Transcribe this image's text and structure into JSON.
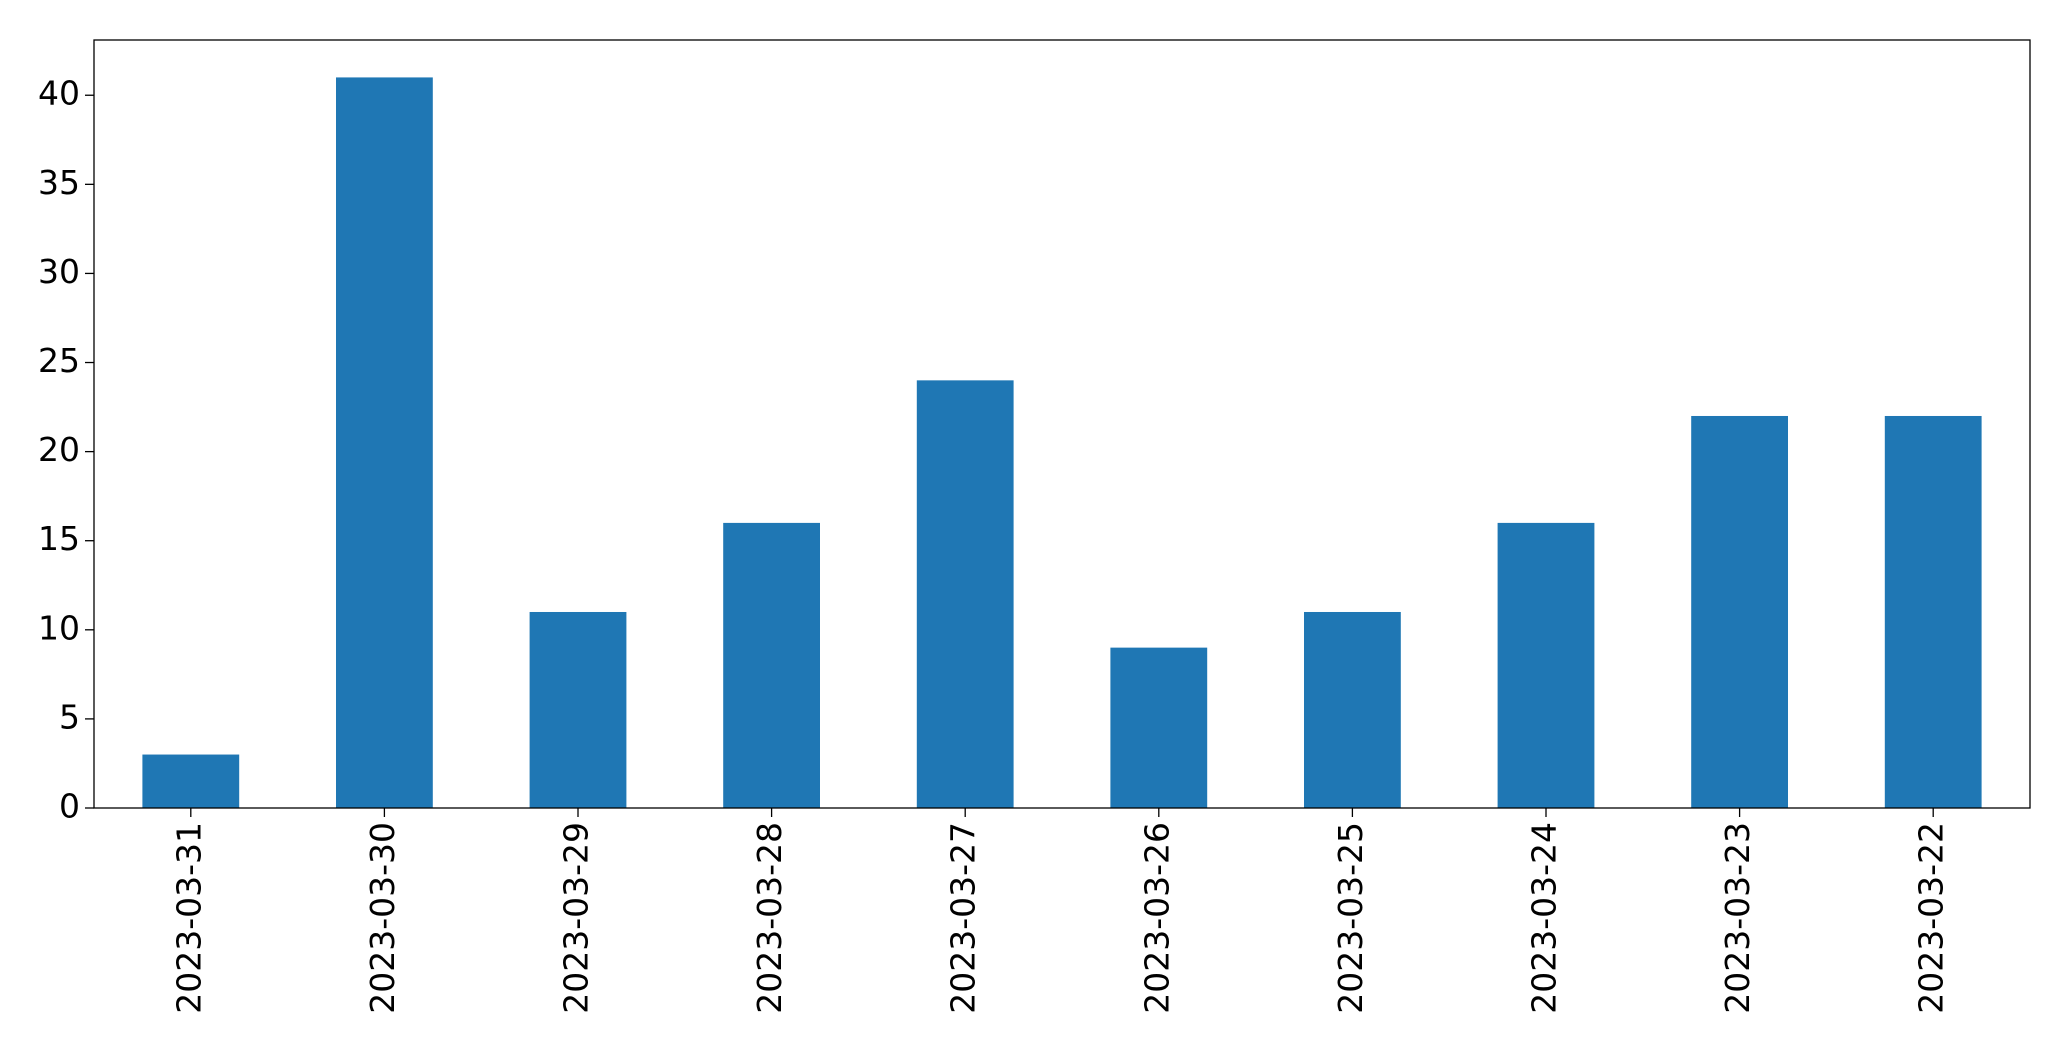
{
  "chart_data": {
    "type": "bar",
    "categories": [
      "2023-03-31",
      "2023-03-30",
      "2023-03-29",
      "2023-03-28",
      "2023-03-27",
      "2023-03-26",
      "2023-03-25",
      "2023-03-24",
      "2023-03-23",
      "2023-03-22"
    ],
    "values": [
      3,
      41,
      11,
      16,
      24,
      9,
      11,
      16,
      22,
      22
    ],
    "color": "#1f77b4",
    "ylim": [
      0,
      43.1
    ],
    "yticks": [
      0,
      5,
      10,
      15,
      20,
      25,
      30,
      35,
      40
    ],
    "grid": false
  }
}
